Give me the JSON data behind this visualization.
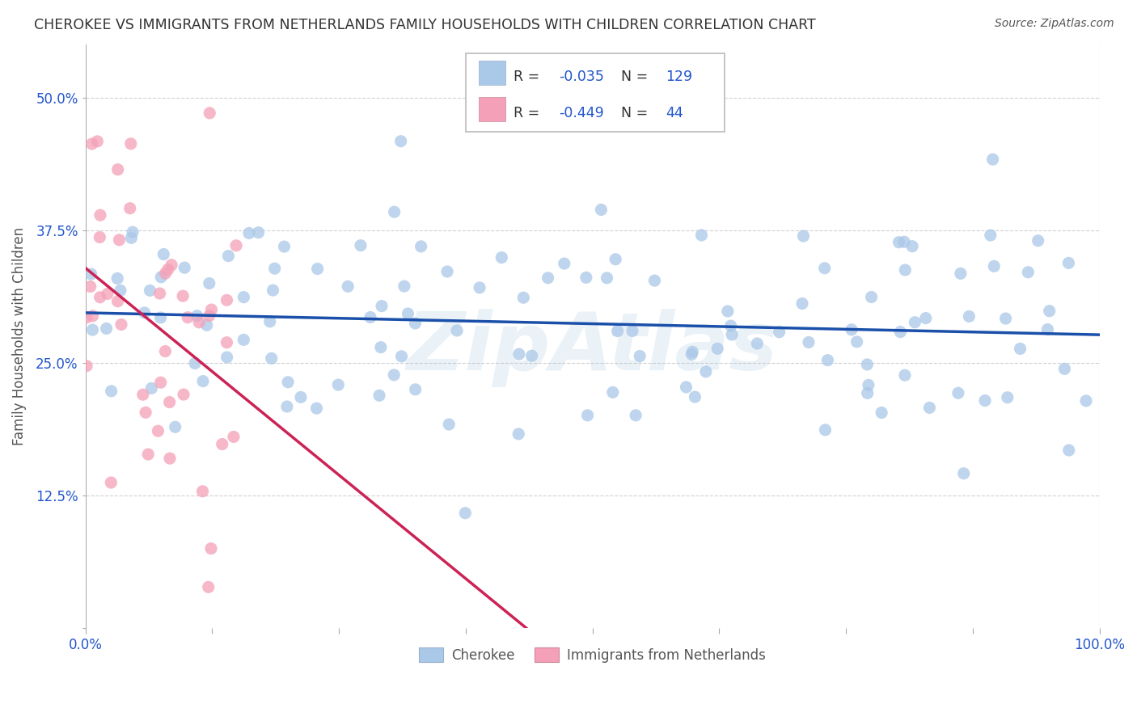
{
  "title": "CHEROKEE VS IMMIGRANTS FROM NETHERLANDS FAMILY HOUSEHOLDS WITH CHILDREN CORRELATION CHART",
  "source": "Source: ZipAtlas.com",
  "ylabel": "Family Households with Children",
  "xlim": [
    0.0,
    100.0
  ],
  "ylim": [
    0.0,
    55.0
  ],
  "yticks": [
    0.0,
    12.5,
    25.0,
    37.5,
    50.0
  ],
  "xticks": [
    0.0,
    12.5,
    25.0,
    37.5,
    50.0,
    62.5,
    75.0,
    87.5,
    100.0
  ],
  "xticklabels_show": [
    "0.0%",
    "100.0%"
  ],
  "yticklabels": [
    "",
    "12.5%",
    "25.0%",
    "37.5%",
    "50.0%"
  ],
  "cherokee_color": "#aac8e8",
  "netherlands_color": "#f4a0b8",
  "cherokee_line_color": "#1a4faa",
  "netherlands_line_color": "#cc2255",
  "cherokee_R": -0.035,
  "cherokee_N": 129,
  "netherlands_R": -0.449,
  "netherlands_N": 44,
  "watermark": "ZipAtlas",
  "watermark_color": "#90b8d8",
  "legend_label_1": "Cherokee",
  "legend_label_2": "Immigrants from Netherlands",
  "background_color": "#ffffff",
  "grid_color": "#cccccc",
  "title_color": "#333333",
  "stat_color": "#2255cc",
  "tick_color": "#2255cc",
  "cherokee_seed": 42,
  "netherlands_seed": 99,
  "cherokee_x_max": 100.0,
  "cherokee_y_mean": 28.0,
  "cherokee_y_std": 6.5,
  "netherlands_x_max": 15.0,
  "netherlands_y_mean": 28.0,
  "netherlands_y_std": 10.0
}
